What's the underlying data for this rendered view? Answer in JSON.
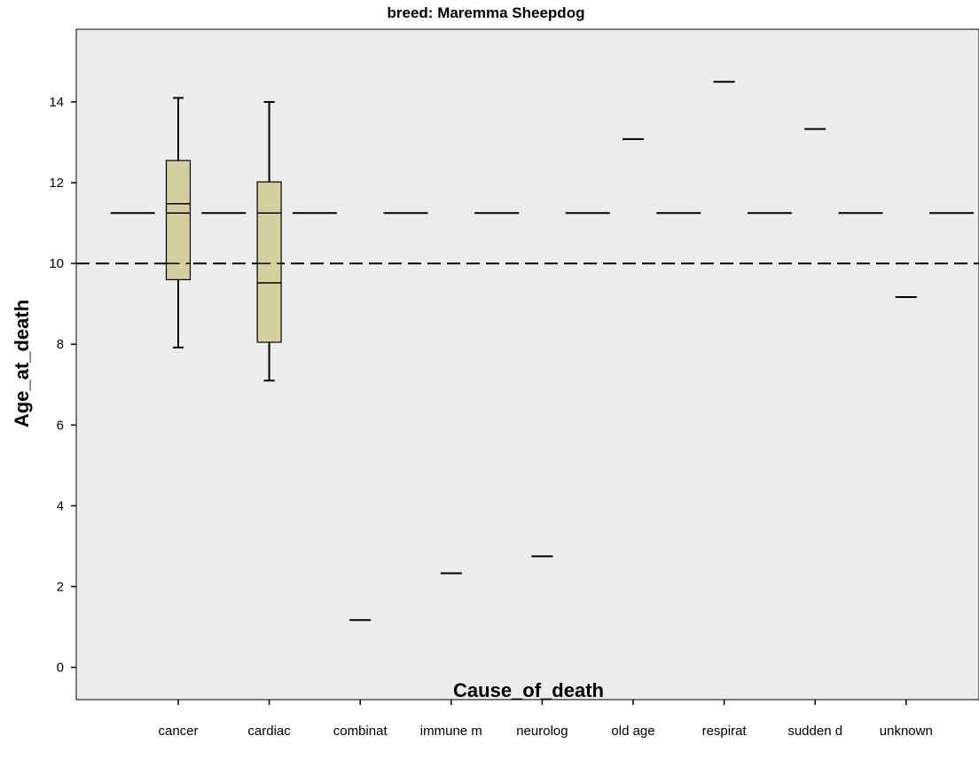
{
  "chart_data": {
    "type": "boxplot",
    "title": "breed: Maremma Sheepdog",
    "xlabel": "Cause_of_death",
    "ylabel": "Age_at_death",
    "ylim": [
      -0.8,
      15.8
    ],
    "yticks": [
      0,
      2,
      4,
      6,
      8,
      10,
      12,
      14
    ],
    "categories": [
      "cancer",
      "cardiac",
      "combinat",
      "immune m",
      "neurolog",
      "old age",
      "respirat",
      "sudden d",
      "unknown"
    ],
    "boxes": [
      {
        "category": "cancer",
        "whisker_low": 7.92,
        "q1": 9.6,
        "median": 11.48,
        "q3": 12.55,
        "whisker_high": 14.1
      },
      {
        "category": "cardiac",
        "whisker_low": 7.1,
        "q1": 8.05,
        "median": 9.52,
        "q3": 12.02,
        "whisker_high": 14.0
      }
    ],
    "single_values": [
      {
        "category": "combinat",
        "value": 1.17
      },
      {
        "category": "immune m",
        "value": 2.33
      },
      {
        "category": "neurolog",
        "value": 2.75
      },
      {
        "category": "old age",
        "value": 13.08
      },
      {
        "category": "respirat",
        "value": 14.5
      },
      {
        "category": "sudden d",
        "value": 13.33
      },
      {
        "category": "unknown",
        "value": 9.17
      }
    ],
    "reference_lines": [
      {
        "value": 11.25,
        "style": "segmented"
      },
      {
        "value": 10.0,
        "style": "dashed"
      }
    ],
    "colors": {
      "plot_background": "#ececec",
      "box_fill": "#d4cf9f",
      "line": "#000000"
    }
  }
}
